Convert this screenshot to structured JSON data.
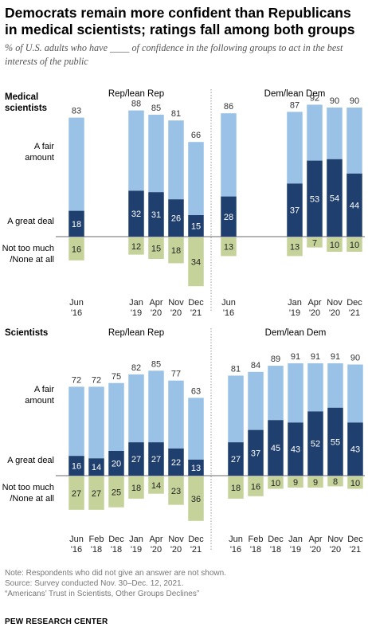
{
  "title": "Democrats remain more confident than Republicans in medical scientists; ratings fall among both groups",
  "subtitle": "% of U.S. adults who have ____ of confidence in the following groups to act in the best interests of the public",
  "notes": [
    "Note: Respondents who did not give an answer are not shown.",
    "Source: Survey conducted Nov. 30–Dec. 12, 2021.",
    "“Americans’ Trust in Scientists, Other Groups Declines”"
  ],
  "footer": "PEW RESEARCH CENTER",
  "colors": {
    "great_deal": "#1f3f6e",
    "fair_amount": "#9ac1e6",
    "not_too_much": "#c5d39b",
    "axis": "#888888"
  },
  "chart_data": [
    {
      "type": "bar",
      "title": "Medical scientists",
      "row_labels": {
        "fair": "A fair amount",
        "great": "A great deal",
        "not": "Not too much /None at all"
      },
      "groups": [
        {
          "name": "Rep/lean Rep",
          "categories": [
            [
              "Jun",
              "'16"
            ],
            [
              "Jan",
              "'19"
            ],
            [
              "Apr",
              "'20"
            ],
            [
              "Nov",
              "'20"
            ],
            [
              "Dec",
              "'21"
            ]
          ],
          "great_deal": [
            18,
            32,
            31,
            26,
            15
          ],
          "total": [
            83,
            88,
            85,
            81,
            66
          ],
          "not_too_much": [
            16,
            12,
            15,
            18,
            34
          ]
        },
        {
          "name": "Dem/lean Dem",
          "categories": [
            [
              "Jun",
              "'16"
            ],
            [
              "Jan",
              "'19"
            ],
            [
              "Apr",
              "'20"
            ],
            [
              "Nov",
              "'20"
            ],
            [
              "Dec",
              "'21"
            ]
          ],
          "great_deal": [
            28,
            37,
            53,
            54,
            44
          ],
          "total": [
            86,
            87,
            92,
            90,
            90
          ],
          "not_too_much": [
            13,
            13,
            7,
            10,
            10
          ]
        }
      ]
    },
    {
      "type": "bar",
      "title": "Scientists",
      "row_labels": {
        "fair": "A fair amount",
        "great": "A great deal",
        "not": "Not too much /None at all"
      },
      "groups": [
        {
          "name": "Rep/lean Rep",
          "categories": [
            [
              "Jun",
              "'16"
            ],
            [
              "Feb",
              "'18"
            ],
            [
              "Dec",
              "'18"
            ],
            [
              "Jan",
              "'19"
            ],
            [
              "Apr",
              "'20"
            ],
            [
              "Nov",
              "'20"
            ],
            [
              "Dec",
              "'21"
            ]
          ],
          "great_deal": [
            16,
            14,
            20,
            27,
            27,
            22,
            13
          ],
          "total": [
            72,
            72,
            75,
            82,
            85,
            77,
            63
          ],
          "not_too_much": [
            27,
            27,
            25,
            18,
            14,
            23,
            36
          ]
        },
        {
          "name": "Dem/lean Dem",
          "categories": [
            [
              "Jun",
              "'16"
            ],
            [
              "Feb",
              "'18"
            ],
            [
              "Dec",
              "'18"
            ],
            [
              "Jan",
              "'19"
            ],
            [
              "Apr",
              "'20"
            ],
            [
              "Nov",
              "'20"
            ],
            [
              "Dec",
              "'21"
            ]
          ],
          "great_deal": [
            27,
            37,
            45,
            43,
            52,
            55,
            43
          ],
          "total": [
            81,
            84,
            89,
            91,
            91,
            91,
            90
          ],
          "not_too_much": [
            18,
            16,
            10,
            9,
            9,
            8,
            10
          ]
        }
      ]
    }
  ]
}
